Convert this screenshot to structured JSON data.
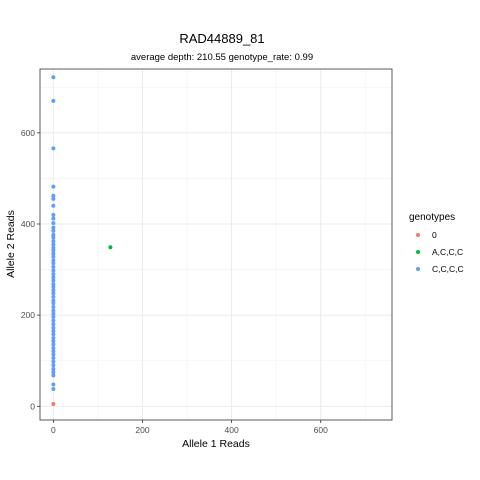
{
  "chart_data": {
    "type": "scatter",
    "title": "RAD44889_81",
    "subtitle": "average depth:  210.55  genotype_rate:  0.99",
    "xlabel": "Allele 1 Reads",
    "ylabel": "Allele 2 Reads",
    "xlim": [
      -30,
      760
    ],
    "ylim": [
      -30,
      740
    ],
    "xticks": [
      0,
      200,
      400,
      600
    ],
    "yticks": [
      0,
      200,
      400,
      600
    ],
    "grid": true,
    "legend": {
      "title": "genotypes",
      "placement": "right"
    },
    "series": [
      {
        "name": "0",
        "color": "#F8766D",
        "points": [
          [
            0,
            5
          ]
        ]
      },
      {
        "name": "A,C,C,C",
        "color": "#00BA38",
        "points": [
          [
            128,
            349
          ]
        ]
      },
      {
        "name": "C,C,C,C",
        "color": "#619CFF",
        "points": [
          [
            0,
            722
          ],
          [
            0,
            670
          ],
          [
            0,
            566
          ],
          [
            0,
            482
          ],
          [
            0,
            462
          ],
          [
            0,
            455
          ],
          [
            0,
            440
          ],
          [
            0,
            420
          ],
          [
            0,
            412
          ],
          [
            0,
            402
          ],
          [
            0,
            392
          ],
          [
            0,
            385
          ],
          [
            0,
            376
          ],
          [
            0,
            370
          ],
          [
            0,
            362
          ],
          [
            0,
            355
          ],
          [
            0,
            348
          ],
          [
            0,
            342
          ],
          [
            0,
            335
          ],
          [
            0,
            328
          ],
          [
            0,
            320
          ],
          [
            0,
            314
          ],
          [
            0,
            306
          ],
          [
            0,
            298
          ],
          [
            0,
            290
          ],
          [
            0,
            283
          ],
          [
            0,
            276
          ],
          [
            0,
            268
          ],
          [
            0,
            262
          ],
          [
            0,
            255
          ],
          [
            0,
            248
          ],
          [
            0,
            240
          ],
          [
            0,
            232
          ],
          [
            0,
            226
          ],
          [
            0,
            218
          ],
          [
            0,
            210
          ],
          [
            0,
            203
          ],
          [
            0,
            196
          ],
          [
            0,
            188
          ],
          [
            0,
            180
          ],
          [
            0,
            172
          ],
          [
            0,
            165
          ],
          [
            0,
            158
          ],
          [
            0,
            150
          ],
          [
            0,
            143
          ],
          [
            0,
            136
          ],
          [
            0,
            128
          ],
          [
            0,
            121
          ],
          [
            0,
            114
          ],
          [
            0,
            106
          ],
          [
            0,
            98
          ],
          [
            0,
            90
          ],
          [
            0,
            82
          ],
          [
            0,
            75
          ],
          [
            0,
            68
          ],
          [
            0,
            48
          ],
          [
            0,
            38
          ]
        ]
      }
    ]
  }
}
